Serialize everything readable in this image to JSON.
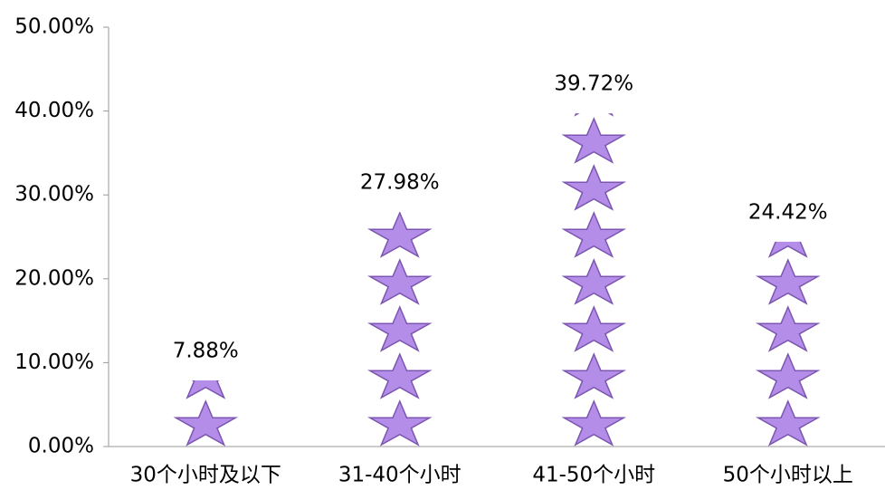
{
  "chart_data": {
    "type": "pictograph",
    "categories": [
      "30个小时及以下",
      "31-40个小时",
      "41-50个小时",
      "50个小时以上"
    ],
    "values": [
      7.88,
      27.98,
      39.72,
      24.42
    ],
    "value_labels": [
      "7.88%",
      "27.98%",
      "39.72%",
      "24.42%"
    ],
    "color": "#b38de8",
    "ylim": [
      0,
      50
    ],
    "yticks": [
      {
        "value": 0,
        "label": "0.00%"
      },
      {
        "value": 10,
        "label": "10.00%"
      },
      {
        "value": 20,
        "label": "20.00%"
      },
      {
        "value": 30,
        "label": "30.00%"
      },
      {
        "value": 40,
        "label": "40.00%"
      },
      {
        "value": 50,
        "label": "50.00%"
      }
    ]
  }
}
